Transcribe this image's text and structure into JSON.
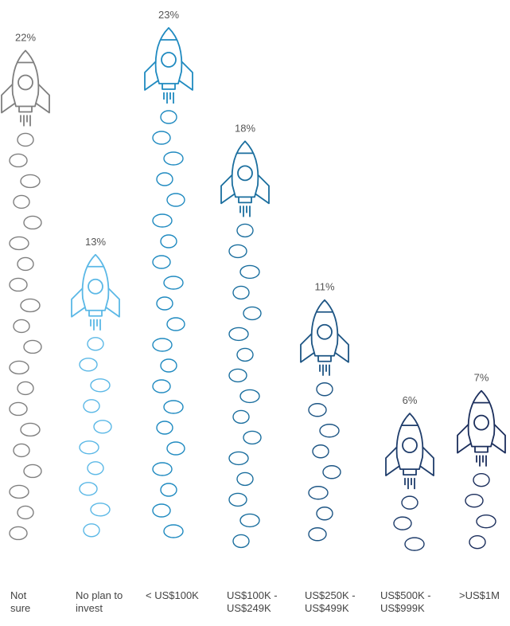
{
  "chart_data": {
    "type": "bar",
    "categories": [
      "Not sure",
      "No plan to invest",
      "< US$100K",
      "US$100K - US$249K",
      "US$250K - US$499K",
      "US$500K - US$999K",
      ">US$1M"
    ],
    "values": [
      22,
      13,
      23,
      18,
      11,
      6,
      7
    ],
    "value_labels": [
      "22%",
      "13%",
      "23%",
      "18%",
      "11%",
      "6%",
      "7%"
    ],
    "colors": [
      "#7f7f7f",
      "#5bb8e6",
      "#1f8ac0",
      "#1a6e9e",
      "#1d5584",
      "#1f3d6b",
      "#1b2e5c"
    ]
  }
}
